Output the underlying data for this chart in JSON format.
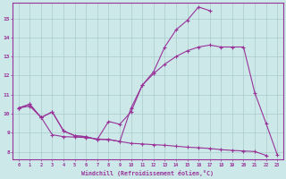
{
  "xlabel": "Windchill (Refroidissement éolien,°C)",
  "background_color": "#cce8e8",
  "grid_color": "#aacccc",
  "line_color": "#993399",
  "xlim": [
    -0.5,
    23.5
  ],
  "ylim": [
    7.6,
    15.8
  ],
  "xticks": [
    0,
    1,
    2,
    3,
    4,
    5,
    6,
    7,
    8,
    9,
    10,
    11,
    12,
    13,
    14,
    15,
    16,
    17,
    18,
    19,
    20,
    21,
    22,
    23
  ],
  "yticks": [
    8,
    9,
    10,
    11,
    12,
    13,
    14,
    15
  ],
  "line1_y": [
    10.3,
    10.5,
    9.8,
    10.1,
    9.1,
    8.85,
    8.8,
    8.65,
    9.6,
    9.45,
    10.1,
    11.5,
    12.2,
    13.5,
    14.4,
    14.9,
    15.6,
    15.4,
    null,
    null,
    null,
    null,
    null,
    null
  ],
  "line2_y": [
    10.3,
    10.5,
    9.8,
    10.1,
    9.1,
    8.85,
    8.8,
    8.65,
    8.65,
    8.55,
    10.3,
    11.5,
    12.1,
    12.6,
    13.0,
    13.3,
    13.5,
    13.6,
    13.5,
    13.5,
    13.5,
    11.1,
    9.5,
    7.85
  ],
  "line3_y": [
    null,
    null,
    null,
    null,
    null,
    null,
    null,
    null,
    null,
    null,
    null,
    null,
    null,
    null,
    null,
    null,
    null,
    null,
    13.5,
    13.5,
    11.1,
    9.5,
    7.85,
    null
  ],
  "line4_y": [
    10.3,
    10.4,
    9.82,
    8.9,
    8.8,
    8.78,
    8.75,
    8.68,
    8.65,
    8.55,
    8.45,
    8.42,
    8.38,
    8.35,
    8.3,
    8.25,
    8.22,
    8.18,
    8.12,
    8.08,
    8.05,
    8.02,
    7.82,
    null
  ]
}
